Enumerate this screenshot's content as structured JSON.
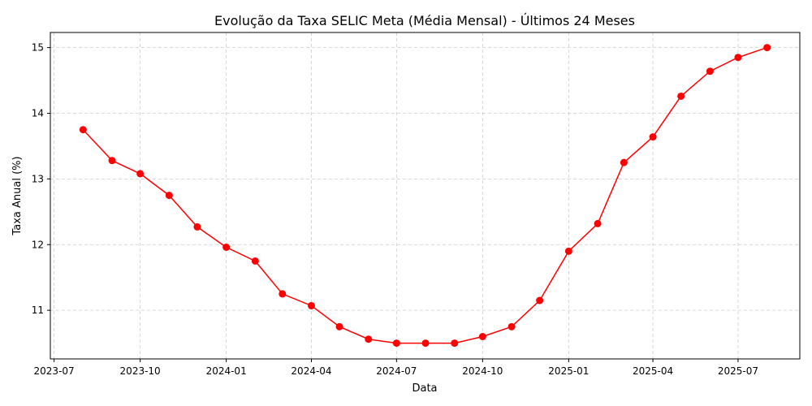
{
  "chart_data": {
    "type": "line",
    "title": "Evolução da Taxa SELIC Meta (Média Mensal) - Últimos 24 Meses",
    "xlabel": "Data",
    "ylabel": "Taxa Anual (%)",
    "x_ticks": [
      "2023-07",
      "2023-10",
      "2024-01",
      "2024-04",
      "2024-07",
      "2024-10",
      "2025-01",
      "2025-04",
      "2025-07"
    ],
    "y_ticks": [
      11,
      12,
      13,
      14,
      15
    ],
    "ylim": [
      10.26,
      15.23
    ],
    "xlim": [
      "2023-06-27",
      "2025-09-05"
    ],
    "grid": true,
    "series": [
      {
        "color": "#ff0000",
        "marker": "circle",
        "x": [
          "2023-08-01",
          "2023-09-01",
          "2023-10-01",
          "2023-11-01",
          "2023-12-01",
          "2024-01-01",
          "2024-02-01",
          "2024-03-01",
          "2024-04-01",
          "2024-05-01",
          "2024-06-01",
          "2024-07-01",
          "2024-08-01",
          "2024-09-01",
          "2024-10-01",
          "2024-11-01",
          "2024-12-01",
          "2025-01-01",
          "2025-02-01",
          "2025-03-01",
          "2025-04-01",
          "2025-05-01",
          "2025-06-01",
          "2025-07-01",
          "2025-08-01"
        ],
        "values": [
          13.75,
          13.28,
          13.08,
          12.75,
          12.27,
          11.96,
          11.75,
          11.25,
          11.07,
          10.75,
          10.56,
          10.5,
          10.5,
          10.5,
          10.6,
          10.75,
          11.15,
          11.9,
          12.32,
          13.25,
          13.64,
          14.26,
          14.64,
          14.85,
          15.0
        ]
      }
    ]
  }
}
